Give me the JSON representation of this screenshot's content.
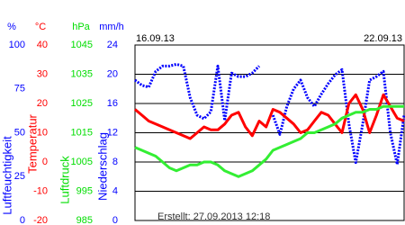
{
  "chart_data": {
    "type": "line",
    "start_label": "16.09.13",
    "end_label": "22.09.13",
    "footer": "Erstellt: 27.09.2013 12:18",
    "grid": true,
    "yaxes": [
      {
        "title": "Luftfeuchtigkeit",
        "unit": "%",
        "color": "#0000ff",
        "ylim": [
          0,
          100
        ],
        "yticks": [
          0,
          25,
          50,
          75,
          100
        ]
      },
      {
        "title": "Temperatur",
        "unit": "°C",
        "color": "#ff0000",
        "ylim": [
          -20,
          40
        ],
        "yticks": [
          -20,
          -10,
          0,
          10,
          20,
          30,
          40
        ]
      },
      {
        "title": "Luftdruck",
        "unit": "hPa",
        "color": "#00dd00",
        "ylim": [
          985,
          1045
        ],
        "yticks": [
          985,
          995,
          1005,
          1015,
          1025,
          1035,
          1045
        ]
      },
      {
        "title": "Niederschlag",
        "unit": "mm/h",
        "color": "#0000ff",
        "ylim": [
          0,
          24
        ],
        "yticks": [
          0,
          4,
          8,
          12,
          16,
          20,
          24
        ]
      }
    ],
    "series": [
      {
        "name": "Luftfeuchtigkeit",
        "axis": 0,
        "color": "#0000ff",
        "values": [
          80,
          77,
          76,
          85,
          88,
          88,
          89,
          88,
          70,
          60,
          58,
          62,
          88,
          57,
          84,
          82,
          82,
          84,
          88,
          null,
          60,
          49,
          65,
          75,
          80,
          70,
          65,
          72,
          78,
          83,
          86,
          55,
          33,
          55,
          80,
          82,
          85,
          50,
          32,
          60
        ]
      },
      {
        "name": "Temperatur",
        "axis": 1,
        "color": "#ff0000",
        "values": [
          18,
          16,
          14,
          13,
          12,
          11,
          10,
          9,
          8,
          10,
          12,
          11,
          11,
          13,
          16,
          17,
          12,
          9,
          14,
          12,
          18,
          17,
          15,
          13,
          10,
          11,
          14,
          17,
          16,
          13,
          10,
          20,
          23,
          18,
          10,
          16,
          23,
          19,
          15,
          14
        ]
      },
      {
        "name": "Luftdruck",
        "axis": 2,
        "color": "#33ee33",
        "values": [
          1010,
          1009,
          1008,
          1007,
          1005,
          1003,
          1002,
          1003,
          1004,
          1004,
          1005,
          1005,
          1004,
          1002,
          1001,
          1000,
          1001,
          1002,
          1004,
          1006,
          1009,
          1010,
          1011,
          1012,
          1013,
          1015,
          1015,
          1016,
          1017,
          1018,
          1020,
          1021,
          1022,
          1022,
          1023,
          1023,
          1024,
          1024,
          1024,
          1024
        ]
      }
    ]
  }
}
